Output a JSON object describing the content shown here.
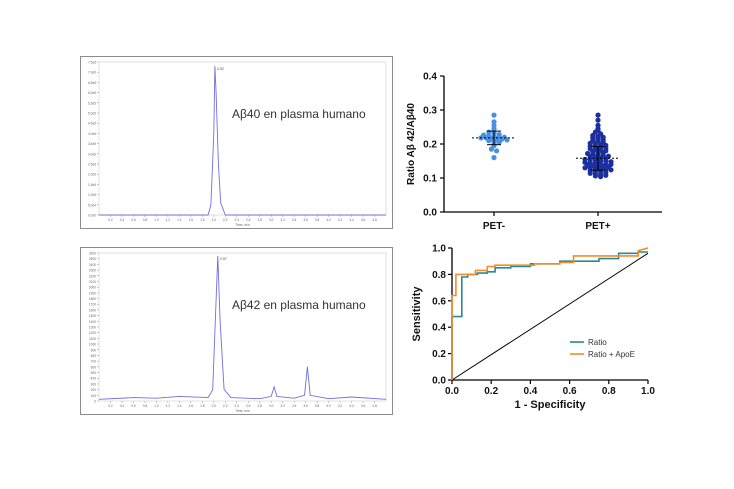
{
  "chart_data": [
    {
      "type": "line",
      "annotation": "Aβ40 en plasma humano",
      "xlabel": "Time, min",
      "peak_label": "2.02",
      "xticks": [
        "0.2",
        "0.4",
        "0.6",
        "0.8",
        "1.0",
        "1.2",
        "1.4",
        "1.6",
        "1.8",
        "2.0",
        "2.2",
        "2.4",
        "2.6",
        "2.8",
        "3.0",
        "3.2",
        "3.4",
        "3.6",
        "3.8",
        "4.0",
        "4.2",
        "4.4",
        "4.6",
        "4.8"
      ],
      "yticks": [
        "0.0e0",
        "5.0e4",
        "1.0e5",
        "1.5e5",
        "2.0e5",
        "2.5e5",
        "3.0e5",
        "3.5e5",
        "4.0e5",
        "4.5e5",
        "5.0e5",
        "5.5e5",
        "6.0e5",
        "6.5e5",
        "7.0e5",
        "7.5e5"
      ],
      "xlim": [
        0.0,
        5.0
      ],
      "ylim": [
        0,
        750000
      ],
      "series": [
        {
          "x": [
            0.0,
            1.0,
            1.9,
            1.95,
            2.0,
            2.02,
            2.04,
            2.08,
            2.12,
            2.2,
            3.0,
            4.0,
            5.0
          ],
          "y": [
            0,
            0,
            0,
            50000,
            400000,
            730000,
            600000,
            250000,
            60000,
            0,
            0,
            0,
            0
          ]
        }
      ]
    },
    {
      "type": "line",
      "annotation": "Aβ42 en plasma humano",
      "xlabel": "Time, min",
      "peak_label": "2.07",
      "xticks": [
        "0.2",
        "0.4",
        "0.6",
        "0.8",
        "1.0",
        "1.2",
        "1.4",
        "1.6",
        "1.8",
        "2.0",
        "2.2",
        "2.4",
        "2.6",
        "2.8",
        "3.0",
        "3.2",
        "3.4",
        "3.6",
        "3.8",
        "4.0",
        "4.2",
        "4.4",
        "4.6",
        "4.8"
      ],
      "yticks": [
        "0",
        "100",
        "200",
        "300",
        "400",
        "500",
        "600",
        "700",
        "800",
        "900",
        "1000",
        "1100",
        "1200",
        "1300",
        "1400",
        "1500",
        "1600",
        "1700",
        "1800",
        "1900",
        "2000",
        "2100",
        "2200",
        "2300",
        "2400",
        "2500",
        "2600"
      ],
      "xlim": [
        0.0,
        5.0
      ],
      "ylim": [
        0,
        2600
      ],
      "series": [
        {
          "x": [
            0.0,
            0.6,
            1.0,
            1.4,
            1.9,
            1.98,
            2.03,
            2.07,
            2.11,
            2.18,
            2.3,
            2.8,
            3.0,
            3.05,
            3.1,
            3.4,
            3.58,
            3.63,
            3.68,
            4.0,
            4.4,
            5.0
          ],
          "y": [
            30,
            60,
            50,
            80,
            60,
            200,
            1500,
            2550,
            1400,
            200,
            60,
            40,
            80,
            250,
            80,
            50,
            100,
            600,
            100,
            40,
            70,
            30
          ]
        }
      ]
    },
    {
      "type": "scatter",
      "ylabel": "Ratio Aβ 42/Aβ40",
      "categories": [
        "PET-",
        "PET+"
      ],
      "ylim": [
        0.0,
        0.4
      ],
      "yticks": [
        "0.0",
        "0.1",
        "0.2",
        "0.3",
        "0.4"
      ],
      "colors": {
        "PET-": "#4a90e2",
        "PET+": "#1c2f9e"
      },
      "summary": [
        {
          "mean": 0.218,
          "sd": 0.02
        },
        {
          "mean": 0.158,
          "sd": 0.035
        }
      ],
      "series": [
        {
          "name": "PET-",
          "values": [
            0.285,
            0.265,
            0.255,
            0.245,
            0.235,
            0.232,
            0.228,
            0.226,
            0.224,
            0.222,
            0.22,
            0.22,
            0.218,
            0.218,
            0.216,
            0.215,
            0.214,
            0.212,
            0.21,
            0.208,
            0.205,
            0.2,
            0.195,
            0.185,
            0.18,
            0.16
          ]
        },
        {
          "name": "PET+",
          "values": [
            0.285,
            0.27,
            0.255,
            0.245,
            0.24,
            0.235,
            0.23,
            0.225,
            0.222,
            0.22,
            0.218,
            0.215,
            0.212,
            0.21,
            0.208,
            0.205,
            0.202,
            0.2,
            0.198,
            0.196,
            0.194,
            0.192,
            0.19,
            0.188,
            0.186,
            0.184,
            0.182,
            0.18,
            0.178,
            0.176,
            0.174,
            0.172,
            0.17,
            0.168,
            0.166,
            0.164,
            0.162,
            0.16,
            0.158,
            0.156,
            0.155,
            0.154,
            0.152,
            0.15,
            0.15,
            0.148,
            0.146,
            0.145,
            0.144,
            0.142,
            0.14,
            0.14,
            0.138,
            0.136,
            0.135,
            0.134,
            0.132,
            0.13,
            0.13,
            0.128,
            0.126,
            0.125,
            0.124,
            0.122,
            0.12,
            0.118,
            0.116,
            0.114,
            0.112,
            0.11,
            0.108,
            0.106,
            0.104
          ]
        }
      ]
    },
    {
      "type": "line",
      "xlabel": "1 - Specificity",
      "ylabel": "Sensitivity",
      "xlim": [
        0.0,
        1.0
      ],
      "ylim": [
        0.0,
        1.0
      ],
      "xticks": [
        "0.0",
        "0.2",
        "0.4",
        "0.6",
        "0.8",
        "1.0"
      ],
      "yticks": [
        "0.0",
        "0.2",
        "0.4",
        "0.6",
        "0.8",
        "1.0"
      ],
      "legend_position": "bottom-right",
      "series": [
        {
          "name": "Ratio",
          "color": "#2a8a8f",
          "x": [
            0,
            0,
            0.05,
            0.05,
            0.08,
            0.08,
            0.13,
            0.13,
            0.18,
            0.18,
            0.22,
            0.22,
            0.3,
            0.3,
            0.4,
            0.4,
            0.55,
            0.55,
            0.75,
            0.75,
            0.85,
            0.85,
            0.95,
            0.95,
            1.0
          ],
          "y": [
            0,
            0.48,
            0.48,
            0.78,
            0.78,
            0.8,
            0.8,
            0.81,
            0.81,
            0.82,
            0.82,
            0.85,
            0.85,
            0.86,
            0.86,
            0.88,
            0.88,
            0.9,
            0.9,
            0.92,
            0.92,
            0.96,
            0.96,
            0.97,
            0.97
          ]
        },
        {
          "name": "Ratio + ApoE",
          "color": "#f28c28",
          "x": [
            0,
            0,
            0.02,
            0.02,
            0.05,
            0.05,
            0.12,
            0.12,
            0.18,
            0.18,
            0.22,
            0.22,
            0.3,
            0.3,
            0.42,
            0.42,
            0.55,
            0.55,
            0.62,
            0.62,
            0.95,
            0.95,
            1.0
          ],
          "y": [
            0,
            0.64,
            0.64,
            0.8,
            0.8,
            0.8,
            0.8,
            0.83,
            0.83,
            0.86,
            0.86,
            0.87,
            0.87,
            0.87,
            0.87,
            0.88,
            0.88,
            0.89,
            0.89,
            0.94,
            0.94,
            0.98,
            1.0
          ]
        }
      ],
      "reference_line": {
        "x": [
          0,
          1.0
        ],
        "y": [
          0,
          0.96
        ]
      }
    }
  ]
}
